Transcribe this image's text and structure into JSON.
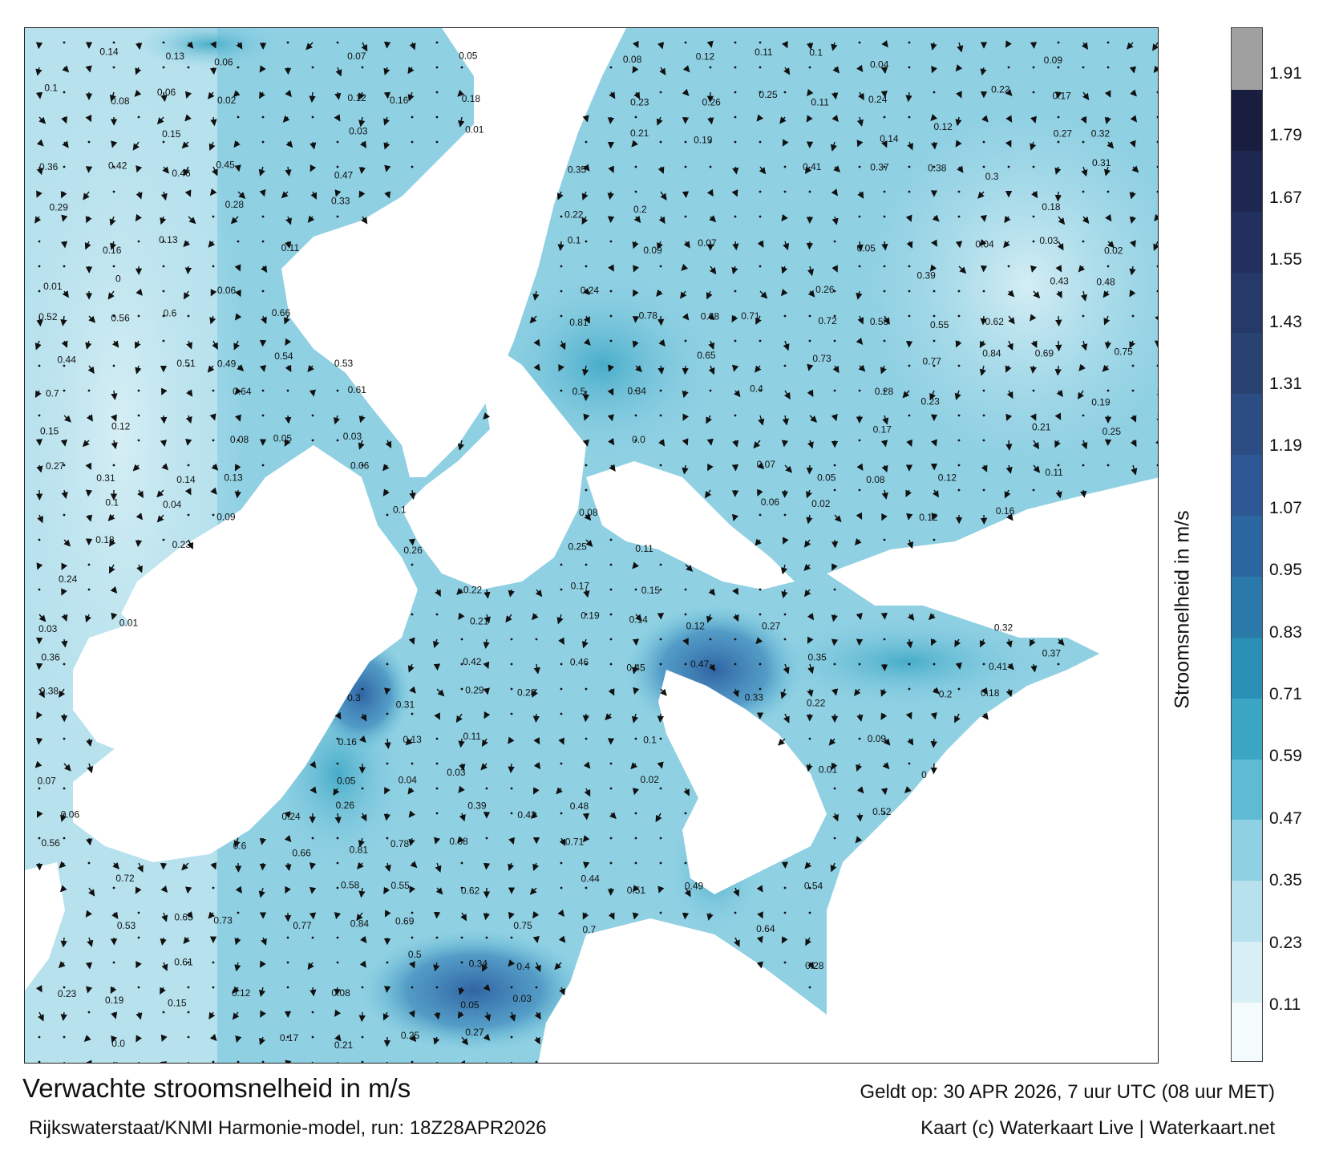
{
  "title": "Verwachte stroomsnelheid in m/s",
  "subtitle": "Rijkswaterstaat/KNMI Harmonie-model, run: 18Z28APR2026",
  "valid_time": "Geldt op: 30 APR 2026, 7 uur UTC (08 uur MET)",
  "credit": "Kaart (c) Waterkaart Live | Waterkaart.net",
  "colorbar": {
    "label": "Stroomsnelheid in m/s",
    "ticks": [
      "1.91",
      "1.79",
      "1.67",
      "1.55",
      "1.43",
      "1.31",
      "1.19",
      "1.07",
      "0.95",
      "0.83",
      "0.71",
      "0.59",
      "0.47",
      "0.35",
      "0.23",
      "0.11"
    ],
    "tick_values": [
      1.91,
      1.79,
      1.67,
      1.55,
      1.43,
      1.31,
      1.19,
      1.07,
      0.95,
      0.83,
      0.71,
      0.59,
      0.47,
      0.35,
      0.23,
      0.11
    ],
    "range": [
      0,
      2.0
    ],
    "colors": [
      "#f4fbfd",
      "#d8eff5",
      "#b6e1ed",
      "#8fd0e3",
      "#5fbbd3",
      "#3aa6c4",
      "#2a8fb5",
      "#2a79a8",
      "#2b66a0",
      "#2d5894",
      "#2b4d83",
      "#284272",
      "#253a68",
      "#22305d",
      "#1d2750",
      "#191e40",
      "#a0a0a0"
    ]
  },
  "speed_labels": [
    "0.14",
    "0.13",
    "0.06",
    "0.07",
    "0.05",
    "0.08",
    "0.12",
    "0.11",
    "0.1",
    "0.04",
    "0.09",
    "0.1",
    "0.08",
    "0.06",
    "0.02",
    "0.12",
    "0.16",
    "0.18",
    "0.23",
    "0.26",
    "0.25",
    "0.11",
    "0.24",
    "0.22",
    "0.17",
    "0.15",
    "0.03",
    "0.01",
    "0.21",
    "0.19",
    "0.14",
    "0.12",
    "0.27",
    "0.32",
    "0.36",
    "0.42",
    "0.46",
    "0.45",
    "0.47",
    "0.35",
    "0.41",
    "0.37",
    "0.38",
    "0.3",
    "0.31",
    "0.29",
    "0.28",
    "0.33",
    "0.22",
    "0.2",
    "0.18",
    "0.16",
    "0.13",
    "0.11",
    "0.1",
    "0.09",
    "0.07",
    "0.05",
    "0.04",
    "0.03",
    "0.02",
    "0.01",
    "0",
    "0.06",
    "0.24",
    "0.26",
    "0.39",
    "0.43",
    "0.48",
    "0.52",
    "0.56",
    "0.6",
    "0.66",
    "0.81",
    "0.78",
    "0.68",
    "0.71",
    "0.72",
    "0.58",
    "0.55",
    "0.62",
    "0.44",
    "0.51",
    "0.49",
    "0.54",
    "0.53",
    "0.65",
    "0.73",
    "0.77",
    "0.84",
    "0.69",
    "0.75",
    "0.7",
    "0.64",
    "0.61",
    "0.5",
    "0.34",
    "0.4",
    "0.28",
    "0.23",
    "0.19",
    "0.15",
    "0.12",
    "0.08",
    "0.05",
    "0.03",
    "0.0",
    "0.17",
    "0.21",
    "0.25",
    "0.27",
    "0.31"
  ]
}
